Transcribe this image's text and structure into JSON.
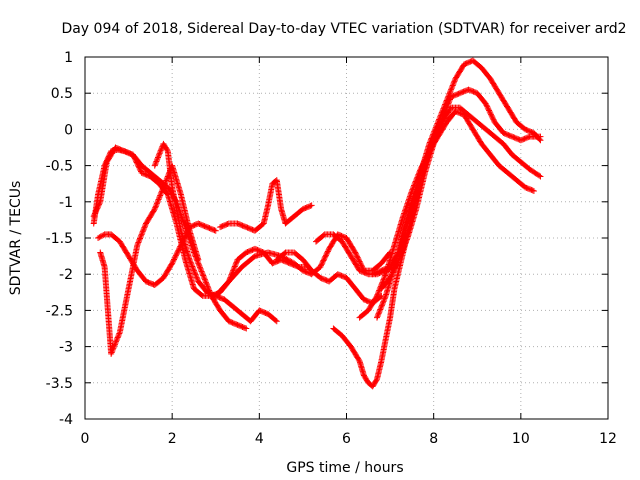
{
  "chart_data": {
    "type": "scatter",
    "title": "Day 094 of 2018, Sidereal Day-to-day VTEC variation (SDTVAR) for receiver ard2",
    "xlabel": "GPS time / hours",
    "ylabel": "SDTVAR / TECUs",
    "xlim": [
      0,
      12
    ],
    "ylim": [
      -4,
      1
    ],
    "xticks": [
      0,
      2,
      4,
      6,
      8,
      10,
      12
    ],
    "yticks": [
      -4,
      -3.5,
      -3,
      -2.5,
      -2,
      -1.5,
      -1,
      -0.5,
      0,
      0.5,
      1
    ],
    "xtick_labels": [
      "0",
      "2",
      "4",
      "6",
      "8",
      "10",
      "12"
    ],
    "ytick_labels": [
      "-4",
      "-3.5",
      "-3",
      "-2.5",
      "-2",
      "-1.5",
      "-1",
      "-0.5",
      "0",
      "0.5",
      "1"
    ],
    "grid": true,
    "marker": "+",
    "color": "#ff0000",
    "series": [
      {
        "x": [
          0.2,
          0.3,
          0.45,
          0.6,
          0.75,
          0.9,
          1.1,
          1.3,
          1.5,
          1.7,
          1.9,
          2.1,
          2.3,
          2.5,
          2.7,
          2.9,
          3.1,
          3.3,
          3.5,
          3.7,
          3.9,
          4.1,
          4.3,
          4.5,
          4.7,
          4.9,
          5.1
        ],
        "y": [
          -1.3,
          -0.9,
          -0.5,
          -0.3,
          -0.28,
          -0.3,
          -0.35,
          -0.6,
          -0.65,
          -0.75,
          -0.9,
          -1.3,
          -1.8,
          -2.2,
          -2.3,
          -2.3,
          -2.25,
          -2.1,
          -1.8,
          -1.7,
          -1.65,
          -1.7,
          -1.85,
          -1.8,
          -1.85,
          -1.9,
          -1.9
        ]
      },
      {
        "x": [
          0.2,
          0.35,
          0.5,
          0.7,
          0.9,
          1.1,
          1.3,
          1.5,
          1.7,
          1.9,
          2.1,
          2.3,
          2.5,
          2.7,
          2.9,
          3.1,
          3.3,
          3.5,
          3.7
        ],
        "y": [
          -1.2,
          -1.0,
          -0.45,
          -0.25,
          -0.3,
          -0.35,
          -0.5,
          -0.6,
          -0.7,
          -0.8,
          -1.0,
          -1.35,
          -1.7,
          -2.0,
          -2.3,
          -2.5,
          -2.65,
          -2.7,
          -2.75
        ]
      },
      {
        "x": [
          0.35,
          0.45,
          0.6,
          0.8,
          1.0,
          1.2,
          1.4,
          1.6,
          1.8,
          2.0,
          2.2,
          2.4,
          2.6
        ],
        "y": [
          -1.7,
          -1.9,
          -3.1,
          -2.8,
          -2.2,
          -1.6,
          -1.3,
          -1.1,
          -0.8,
          -0.5,
          -0.9,
          -1.4,
          -1.8
        ]
      },
      {
        "x": [
          0.3,
          0.45,
          0.6,
          0.8,
          1.0,
          1.2,
          1.4,
          1.6,
          1.8,
          2.0,
          2.2,
          2.4,
          2.6,
          2.8,
          3.0
        ],
        "y": [
          -1.5,
          -1.45,
          -1.45,
          -1.55,
          -1.75,
          -1.95,
          -2.1,
          -2.15,
          -2.05,
          -1.85,
          -1.6,
          -1.35,
          -1.3,
          -1.35,
          -1.4
        ]
      },
      {
        "x": [
          1.6,
          1.7,
          1.8,
          1.9,
          2.0,
          2.2,
          2.4,
          2.6,
          2.8,
          3.0,
          3.2,
          3.4,
          3.6,
          3.8,
          4.0,
          4.2,
          4.4
        ],
        "y": [
          -0.5,
          -0.35,
          -0.2,
          -0.3,
          -0.8,
          -1.4,
          -1.8,
          -2.1,
          -2.25,
          -2.3,
          -2.35,
          -2.45,
          -2.55,
          -2.65,
          -2.5,
          -2.55,
          -2.65
        ]
      },
      {
        "x": [
          3.1,
          3.3,
          3.5,
          3.7,
          3.9,
          4.1,
          4.2,
          4.3,
          4.4,
          4.5,
          4.6,
          4.8,
          5.0,
          5.2
        ],
        "y": [
          -1.35,
          -1.3,
          -1.3,
          -1.35,
          -1.4,
          -1.3,
          -1.05,
          -0.75,
          -0.7,
          -1.1,
          -1.3,
          -1.2,
          -1.1,
          -1.05
        ]
      },
      {
        "x": [
          3.0,
          3.3,
          3.6,
          3.9,
          4.2,
          4.5,
          4.8,
          5.0,
          5.2,
          5.4,
          5.6,
          5.8,
          6.0,
          6.2,
          6.4,
          6.6,
          6.8,
          7.0
        ],
        "y": [
          -2.3,
          -2.1,
          -1.9,
          -1.75,
          -1.7,
          -1.75,
          -1.85,
          -1.95,
          -2.0,
          -1.9,
          -1.65,
          -1.45,
          -1.5,
          -1.7,
          -1.95,
          -1.95,
          -1.85,
          -1.7
        ]
      },
      {
        "x": [
          4.4,
          4.6,
          4.8,
          5.0,
          5.2,
          5.4,
          5.6,
          5.8,
          6.0,
          6.2,
          6.4,
          6.6,
          6.8
        ],
        "y": [
          -1.8,
          -1.7,
          -1.7,
          -1.8,
          -1.95,
          -2.05,
          -2.1,
          -2.0,
          -2.05,
          -2.2,
          -2.35,
          -2.4,
          -2.3
        ]
      },
      {
        "x": [
          5.3,
          5.5,
          5.7,
          5.9,
          6.1,
          6.3,
          6.5,
          6.7,
          6.9,
          7.1
        ],
        "y": [
          -1.55,
          -1.45,
          -1.45,
          -1.55,
          -1.75,
          -1.95,
          -2.0,
          -2.0,
          -1.95,
          -1.9
        ]
      },
      {
        "x": [
          5.7,
          5.9,
          6.1,
          6.3,
          6.4,
          6.5,
          6.6,
          6.7,
          6.8,
          6.9,
          7.0,
          7.1,
          7.3,
          7.5,
          7.7
        ],
        "y": [
          -2.75,
          -2.85,
          -3.0,
          -3.2,
          -3.4,
          -3.5,
          -3.55,
          -3.45,
          -3.2,
          -2.9,
          -2.6,
          -2.2,
          -1.7,
          -1.2,
          -0.7
        ]
      },
      {
        "x": [
          6.3,
          6.5,
          6.7,
          6.9,
          7.1,
          7.3,
          7.5,
          7.7,
          7.9,
          8.1,
          8.3,
          8.5,
          8.7,
          8.9,
          9.1,
          9.3,
          9.5,
          9.7,
          9.9,
          10.1,
          10.3
        ],
        "y": [
          -2.6,
          -2.5,
          -2.3,
          -2.0,
          -1.6,
          -1.2,
          -0.85,
          -0.55,
          -0.3,
          -0.1,
          0.1,
          0.25,
          0.2,
          0.0,
          -0.2,
          -0.35,
          -0.5,
          -0.6,
          -0.7,
          -0.8,
          -0.85
        ]
      },
      {
        "x": [
          6.7,
          6.9,
          7.1,
          7.3,
          7.5,
          7.7,
          7.9,
          8.1,
          8.3,
          8.5,
          8.7,
          8.9,
          9.1,
          9.3,
          9.5,
          9.7,
          9.9,
          10.1,
          10.3,
          10.45
        ],
        "y": [
          -2.6,
          -2.3,
          -1.9,
          -1.4,
          -1.0,
          -0.6,
          -0.2,
          0.1,
          0.4,
          0.7,
          0.9,
          0.95,
          0.85,
          0.7,
          0.5,
          0.3,
          0.1,
          0.0,
          -0.05,
          -0.15
        ]
      },
      {
        "x": [
          6.6,
          6.8,
          7.0,
          7.2,
          7.4,
          7.6,
          7.8,
          8.0,
          8.2,
          8.4,
          8.6,
          8.8,
          9.0,
          9.2,
          9.4,
          9.6,
          9.8,
          10.0,
          10.2,
          10.45
        ],
        "y": [
          -2.0,
          -1.95,
          -1.9,
          -1.7,
          -1.3,
          -0.95,
          -0.5,
          -0.15,
          0.15,
          0.45,
          0.5,
          0.55,
          0.5,
          0.35,
          0.1,
          -0.05,
          -0.1,
          -0.15,
          -0.1,
          -0.1
        ]
      },
      {
        "x": [
          6.8,
          7.0,
          7.2,
          7.4,
          7.6,
          7.8,
          8.0,
          8.2,
          8.4,
          8.6,
          8.8,
          9.0,
          9.2,
          9.4,
          9.6,
          9.8,
          10.0,
          10.2,
          10.45
        ],
        "y": [
          -2.2,
          -2.05,
          -1.8,
          -1.5,
          -1.1,
          -0.6,
          -0.2,
          0.1,
          0.3,
          0.3,
          0.2,
          0.1,
          0.0,
          -0.1,
          -0.2,
          -0.35,
          -0.45,
          -0.55,
          -0.65
        ]
      }
    ]
  }
}
